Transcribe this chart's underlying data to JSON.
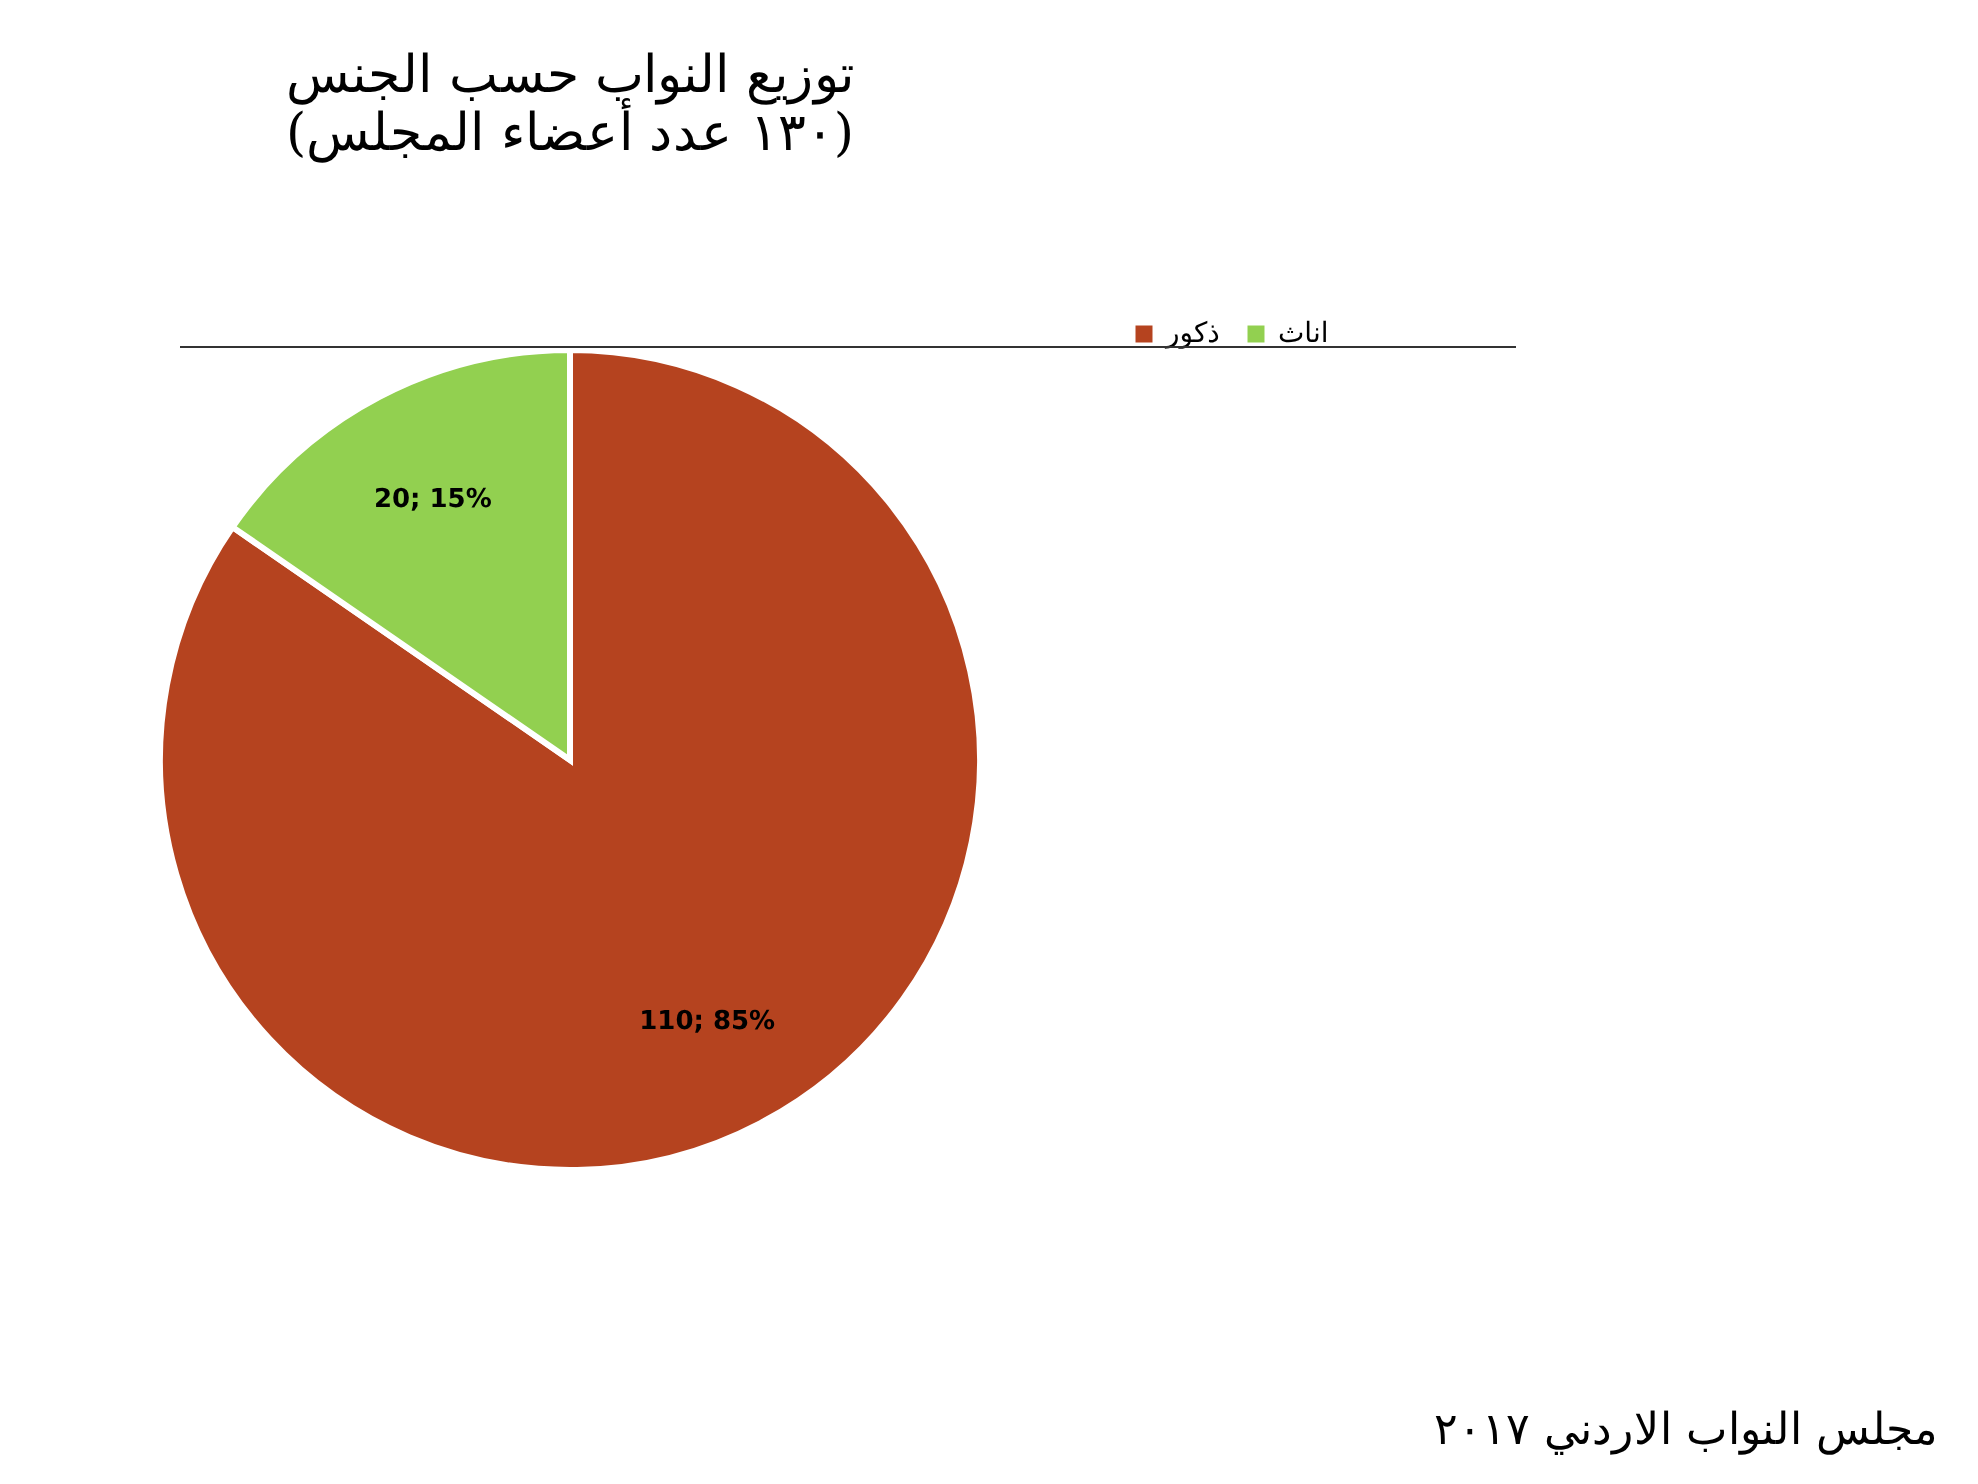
{
  "chart_data": {
    "type": "pie",
    "title": "توزيع النواب حسب الجنس",
    "subtitle": "(١٣٠ عدد أعضاء المجلس)",
    "categories": [
      "ذكور",
      "اناث"
    ],
    "values": [
      110,
      20
    ],
    "colors": [
      "#b5431f",
      "#92d050"
    ],
    "value_labels": [
      "110; 85%",
      "20; 15%"
    ],
    "legend": "right",
    "annotations": [
      "مجلس النواب الاردني ٢٠١٧"
    ]
  }
}
